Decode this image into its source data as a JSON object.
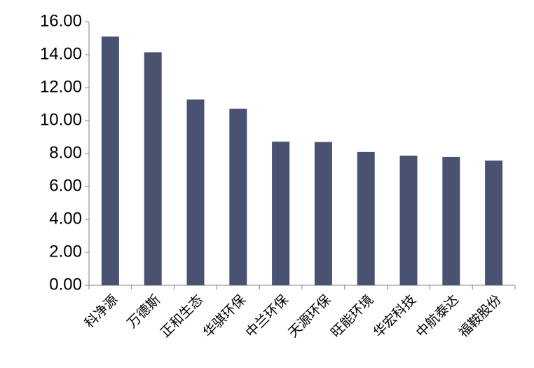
{
  "chart_data": {
    "type": "bar",
    "categories": [
      "科净源",
      "万德斯",
      "正和生态",
      "华骐环保",
      "中兰环保",
      "天源环保",
      "旺能环境",
      "华宏科技",
      "中航泰达",
      "福鞍股份"
    ],
    "values": [
      15.1,
      14.15,
      11.28,
      10.72,
      8.72,
      8.7,
      8.09,
      7.87,
      7.79,
      7.57
    ],
    "color": "#4a5272",
    "ylim": [
      0,
      16
    ],
    "yticks": [
      {
        "value": 0,
        "label": "0.00"
      },
      {
        "value": 2,
        "label": "2.00"
      },
      {
        "value": 4,
        "label": "4.00"
      },
      {
        "value": 6,
        "label": "6.00"
      },
      {
        "value": 8,
        "label": "8.00"
      },
      {
        "value": 10,
        "label": "10.00"
      },
      {
        "value": 12,
        "label": "12.00"
      },
      {
        "value": 14,
        "label": "14.00"
      },
      {
        "value": 16,
        "label": "16.00"
      }
    ],
    "grid": false
  }
}
